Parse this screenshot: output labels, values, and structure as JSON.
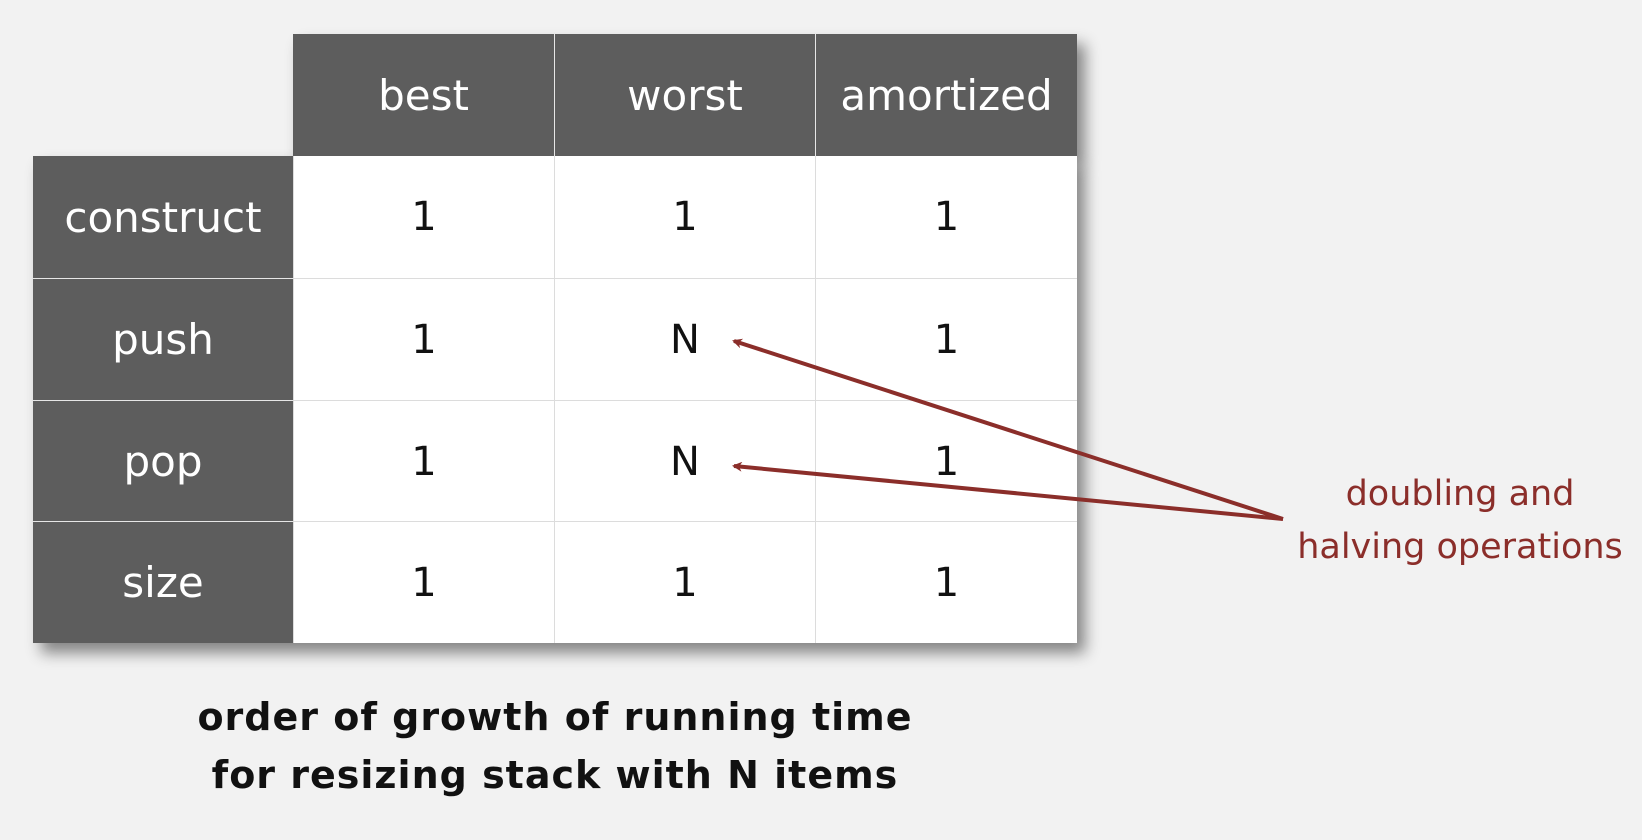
{
  "table": {
    "headers": [
      "best",
      "worst",
      "amortized"
    ],
    "rows": [
      {
        "label": "construct",
        "best": "1",
        "worst": "1",
        "amortized": "1"
      },
      {
        "label": "push",
        "best": "1",
        "worst": "N",
        "amortized": "1"
      },
      {
        "label": "pop",
        "best": "1",
        "worst": "N",
        "amortized": "1"
      },
      {
        "label": "size",
        "best": "1",
        "worst": "1",
        "amortized": "1"
      }
    ]
  },
  "caption": {
    "line1": "order of growth of running time",
    "line2": "for resizing stack with N items"
  },
  "annotation": {
    "line1": "doubling and",
    "line2": "halving operations",
    "color": "#8b2e2a"
  },
  "colors": {
    "header_bg": "#5d5d5d",
    "cell_bg": "#ffffff",
    "page_bg": "#f2f2f2"
  }
}
